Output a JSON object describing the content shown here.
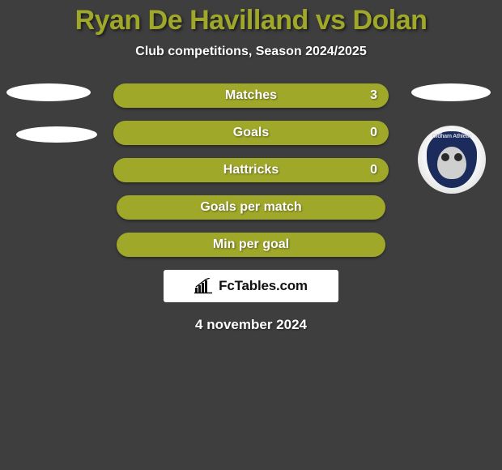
{
  "title": "Ryan De Havilland vs Dolan",
  "subtitle": "Club competitions, Season 2024/2025",
  "crest_label": "Oldham Athletic",
  "bars": [
    {
      "label": "Matches",
      "value": "3",
      "show_value": true,
      "short": false
    },
    {
      "label": "Goals",
      "value": "0",
      "show_value": true,
      "short": false
    },
    {
      "label": "Hattricks",
      "value": "0",
      "show_value": true,
      "short": false
    },
    {
      "label": "Goals per match",
      "value": "",
      "show_value": false,
      "short": true
    },
    {
      "label": "Min per goal",
      "value": "",
      "show_value": false,
      "short": true
    }
  ],
  "logo_text": "FcTables.com",
  "date": "4 november 2024",
  "colors": {
    "background": "#3e3e3e",
    "accent": "#a0a82a",
    "text_light": "#ffffff",
    "crest_bg": "#1a2b5c",
    "logo_bg": "#ffffff",
    "logo_text": "#111111"
  }
}
